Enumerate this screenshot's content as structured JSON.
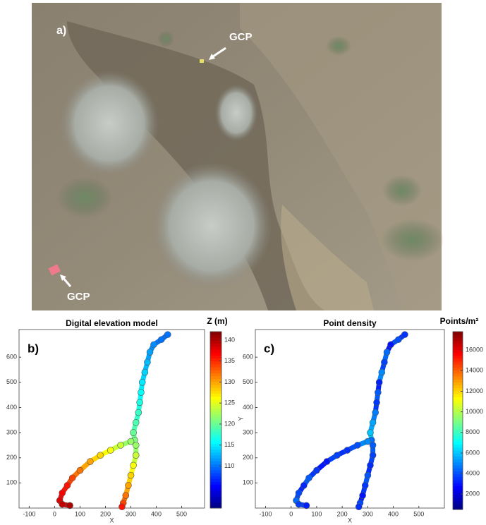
{
  "panel_a": {
    "label": "a)",
    "annotations": [
      "GCP",
      "GCP"
    ]
  },
  "chart_data": [
    {
      "type": "scatter",
      "panel_label": "b)",
      "title": "Digital elevation model",
      "x_label": "X",
      "colormap": "jet",
      "colorbar_label": "Z (m)",
      "clim": [
        100,
        142
      ],
      "cticks": [
        110,
        115,
        120,
        125,
        130,
        135,
        140
      ],
      "xlim": [
        -140,
        590
      ],
      "ylim": [
        0,
        710
      ],
      "xticks": [
        -100,
        0,
        100,
        200,
        300,
        400,
        500
      ],
      "yticks": [
        100,
        200,
        300,
        400,
        500,
        600
      ],
      "branches": [
        {
          "x": [
            445,
            420,
            390,
            375,
            365,
            355,
            345,
            340,
            335,
            330,
            320,
            310,
            315
          ],
          "y": [
            690,
            670,
            650,
            620,
            580,
            540,
            500,
            460,
            420,
            380,
            340,
            300,
            270
          ],
          "color_values": [
            110,
            110,
            111,
            112,
            113,
            114,
            115,
            116,
            117,
            118,
            119,
            120,
            121
          ]
        },
        {
          "x": [
            300,
            260,
            220,
            180,
            140,
            100,
            70,
            50,
            30,
            20,
            30,
            60
          ],
          "y": [
            265,
            250,
            230,
            210,
            185,
            150,
            120,
            90,
            60,
            30,
            15,
            10
          ],
          "color_values": [
            122,
            124,
            126,
            128,
            130,
            132,
            134,
            136,
            137,
            138,
            139,
            140
          ]
        },
        {
          "x": [
            320,
            320,
            310,
            300,
            290,
            280,
            270,
            265
          ],
          "y": [
            250,
            210,
            170,
            130,
            90,
            50,
            20,
            5
          ],
          "color_values": [
            122,
            124,
            126,
            128,
            130,
            132,
            134,
            136
          ]
        }
      ]
    },
    {
      "type": "scatter",
      "panel_label": "c)",
      "title": "Point density",
      "x_label": "X",
      "y_label": "Y",
      "colormap": "jet",
      "colorbar_label": "Points/m²",
      "clim": [
        500,
        17800
      ],
      "cticks": [
        2000,
        4000,
        6000,
        8000,
        10000,
        12000,
        14000,
        16000
      ],
      "xlim": [
        -140,
        600
      ],
      "ylim": [
        0,
        710
      ],
      "xticks": [
        -100,
        0,
        100,
        200,
        300,
        400,
        500
      ],
      "yticks": [
        100,
        200,
        300,
        400,
        500,
        600
      ],
      "branches": [
        {
          "x": [
            445,
            420,
            390,
            375,
            365,
            355,
            345,
            340,
            335,
            330,
            320,
            310,
            315
          ],
          "y": [
            690,
            670,
            650,
            620,
            580,
            540,
            500,
            460,
            420,
            380,
            340,
            300,
            270
          ],
          "color_values": [
            3500,
            4000,
            3000,
            4500,
            3800,
            5000,
            3200,
            4200,
            3600,
            4800,
            5500,
            6000,
            4500
          ]
        },
        {
          "x": [
            300,
            260,
            220,
            180,
            140,
            100,
            70,
            50,
            30,
            20,
            30,
            60
          ],
          "y": [
            265,
            250,
            230,
            210,
            185,
            150,
            120,
            90,
            60,
            30,
            15,
            10
          ],
          "color_values": [
            5000,
            4000,
            3500,
            3800,
            3000,
            3600,
            4200,
            3300,
            3900,
            4500,
            3700,
            3200
          ]
        },
        {
          "x": [
            320,
            320,
            310,
            300,
            290,
            280,
            270,
            265
          ],
          "y": [
            250,
            210,
            170,
            130,
            90,
            50,
            20,
            5
          ],
          "color_values": [
            4200,
            3800,
            3400,
            4100,
            3600,
            3000,
            3900,
            3500
          ]
        }
      ]
    }
  ]
}
